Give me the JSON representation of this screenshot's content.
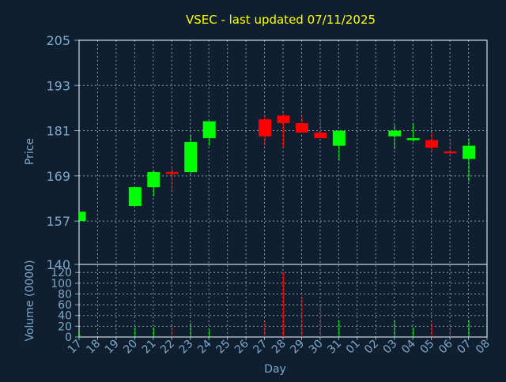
{
  "chart_data": {
    "type": "candlestick",
    "title": "VSEC - last updated 07/11/2025",
    "xlabel": "Day",
    "price_panel": {
      "ylabel": "Price",
      "yticks": [
        205,
        193,
        181,
        169,
        157,
        140
      ],
      "ylim": [
        145.5,
        205
      ]
    },
    "volume_panel": {
      "ylabel": "Volume (0000)",
      "yticks": [
        0,
        20,
        40,
        60,
        80,
        100,
        120
      ],
      "ylim": [
        0,
        135
      ]
    },
    "x_labels": [
      "17",
      "18",
      "19",
      "20",
      "21",
      "22",
      "23",
      "24",
      "25",
      "26",
      "27",
      "28",
      "29",
      "30",
      "31",
      "01",
      "02",
      "03",
      "04",
      "05",
      "06",
      "07",
      "08"
    ],
    "grid": true,
    "colors": {
      "background": "#0f1f30",
      "up": "#00ff00",
      "down": "#ff0000",
      "title": "#ffff00",
      "axis_text": "#7fa8c8",
      "grid": "#8a9aa8"
    },
    "candles": [
      {
        "day": "17",
        "open": 157.0,
        "high": 159.5,
        "low": 157.0,
        "close": 159.5,
        "volume": 6
      },
      {
        "day": "20",
        "open": 161.0,
        "high": 166.0,
        "low": 161.0,
        "close": 166.0,
        "volume": 18
      },
      {
        "day": "21",
        "open": 166.0,
        "high": 170.5,
        "low": 163.5,
        "close": 170.0,
        "volume": 18
      },
      {
        "day": "22",
        "open": 170.0,
        "high": 171.5,
        "low": 165.0,
        "close": 169.5,
        "volume": 20
      },
      {
        "day": "23",
        "open": 170.0,
        "high": 180.0,
        "low": 169.5,
        "close": 178.0,
        "volume": 26
      },
      {
        "day": "24",
        "open": 179.0,
        "high": 183.5,
        "low": 177.0,
        "close": 183.5,
        "volume": 14
      },
      {
        "day": "27",
        "open": 184.0,
        "high": 185.0,
        "low": 177.0,
        "close": 179.5,
        "volume": 28
      },
      {
        "day": "28",
        "open": 185.0,
        "high": 185.5,
        "low": 176.5,
        "close": 183.0,
        "volume": 120
      },
      {
        "day": "29",
        "open": 183.0,
        "high": 185.0,
        "low": 180.5,
        "close": 180.5,
        "volume": 74
      },
      {
        "day": "30",
        "open": 180.5,
        "high": 183.5,
        "low": 179.0,
        "close": 179.0,
        "volume": 58
      },
      {
        "day": "31",
        "open": 177.0,
        "high": 181.0,
        "low": 173.0,
        "close": 181.0,
        "volume": 32
      },
      {
        "day": "03",
        "open": 179.5,
        "high": 182.5,
        "low": 176.0,
        "close": 181.0,
        "volume": 32
      },
      {
        "day": "04",
        "open": 178.5,
        "high": 183.0,
        "low": 178.0,
        "close": 179.0,
        "volume": 18
      },
      {
        "day": "05",
        "open": 178.5,
        "high": 180.5,
        "low": 175.5,
        "close": 176.5,
        "volume": 26
      },
      {
        "day": "06",
        "open": 175.5,
        "high": 178.5,
        "low": 174.5,
        "close": 175.0,
        "volume": 20
      },
      {
        "day": "07",
        "open": 173.5,
        "high": 179.0,
        "low": 167.5,
        "close": 177.0,
        "volume": 32
      }
    ]
  }
}
